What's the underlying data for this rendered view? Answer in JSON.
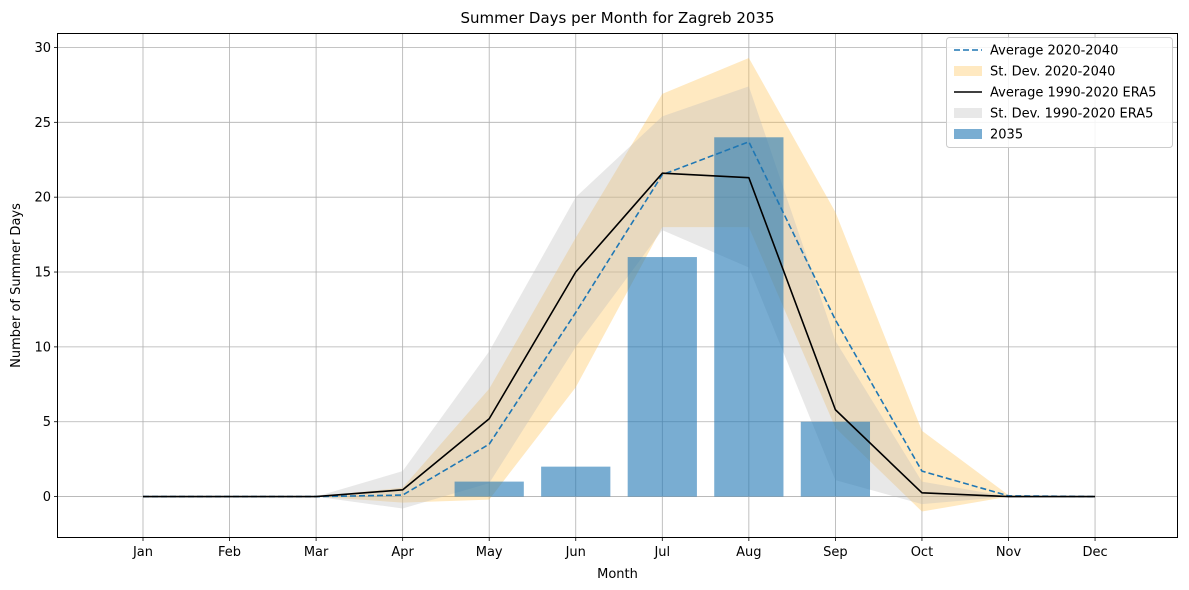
{
  "chart_data": {
    "type": "bar",
    "title": "Summer Days per Month for Zagreb 2035",
    "xlabel": "Month",
    "ylabel": "Number of Summer Days",
    "categories": [
      "Jan",
      "Feb",
      "Mar",
      "Apr",
      "May",
      "Jun",
      "Jul",
      "Aug",
      "Sep",
      "Oct",
      "Nov",
      "Dec"
    ],
    "ylim": [
      -2.7,
      30.9
    ],
    "yticks": [
      0,
      5,
      10,
      15,
      20,
      25,
      30
    ],
    "grid": true,
    "legend_position": "top-right",
    "series": [
      {
        "name": "Average 2020-2040",
        "kind": "line",
        "style": "dashed",
        "color": "#1f77b4",
        "values": [
          0,
          0,
          0,
          0.1,
          3.5,
          12.3,
          21.5,
          23.7,
          11.8,
          1.7,
          0.05,
          0
        ]
      },
      {
        "name": "St. Dev. 2020-2040",
        "kind": "band",
        "color": "#ffc04d",
        "lower": [
          0,
          0,
          0,
          -0.4,
          -0.2,
          7.3,
          18.0,
          18.0,
          4.6,
          -1.0,
          0,
          0
        ],
        "upper": [
          0,
          0,
          0,
          0.6,
          7.2,
          17.3,
          26.9,
          29.3,
          19.0,
          4.4,
          0.1,
          0
        ]
      },
      {
        "name": "Average 1990-2020 ERA5",
        "kind": "line",
        "style": "solid",
        "color": "#000000",
        "values": [
          0,
          0,
          0,
          0.45,
          5.2,
          15.0,
          21.6,
          21.3,
          5.8,
          0.25,
          0,
          0
        ]
      },
      {
        "name": "St. Dev. 1990-2020 ERA5",
        "kind": "band",
        "color": "#bdbdbd",
        "lower": [
          0,
          0,
          0,
          -0.8,
          0.9,
          10.0,
          17.8,
          15.3,
          1.1,
          -0.5,
          0,
          0
        ],
        "upper": [
          0,
          0,
          0,
          1.7,
          9.7,
          20.0,
          25.4,
          27.4,
          10.4,
          1.0,
          0,
          0
        ]
      },
      {
        "name": "2035",
        "kind": "bar",
        "color": "#1f77b4",
        "values": [
          0,
          0,
          0,
          0,
          1,
          2,
          16,
          24,
          5,
          0,
          0,
          0
        ]
      }
    ]
  }
}
